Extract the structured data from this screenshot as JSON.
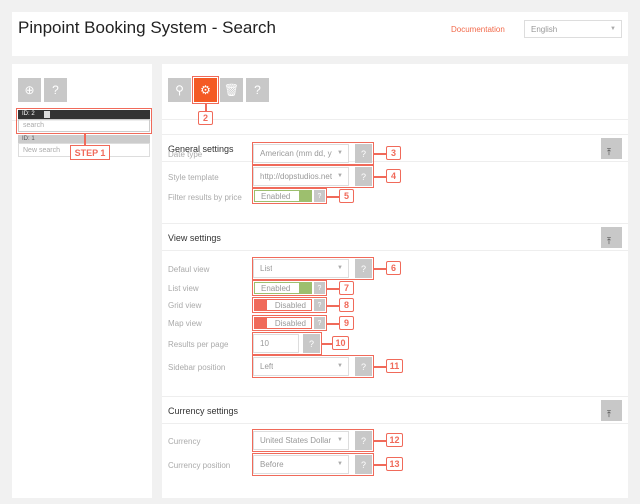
{
  "header": {
    "title": "Pinpoint Booking System - Search",
    "documentation": "Documentation",
    "language": "English"
  },
  "sidebar": {
    "items": [
      {
        "id": "ID: 2",
        "name": "search"
      },
      {
        "id": "ID: 1",
        "name": "New search"
      }
    ],
    "step_label": "STEP 1"
  },
  "toolbar": {
    "buttons": [
      "search-icon",
      "gear-icon",
      "trash-icon",
      "help-icon"
    ]
  },
  "sections": {
    "general": {
      "title": "General settings",
      "date_type_label": "Date type",
      "date_type": "American (mm dd, yyy",
      "style_label": "Style template",
      "style": "http://dopstudios.net/",
      "filter_label": "Filter results by price",
      "filter": "Enabled"
    },
    "view": {
      "title": "View settings",
      "default_label": "Defaul view",
      "default": "List",
      "list_label": "List view",
      "list": "Enabled",
      "grid_label": "Grid view",
      "grid": "Disabled",
      "map_label": "Map view",
      "map": "Disabled",
      "rpp_label": "Results per page",
      "rpp": "10",
      "sidebar_label": "Sidebar position",
      "sidebar": "Left"
    },
    "currency": {
      "title": "Currency settings",
      "currency_label": "Currency",
      "currency": "United States Dollar",
      "position_label": "Currency position",
      "position": "Before"
    }
  },
  "annotations": [
    "2",
    "3",
    "4",
    "5",
    "6",
    "7",
    "8",
    "9",
    "10",
    "11",
    "12",
    "13"
  ],
  "colors": {
    "accent": "#f45a24",
    "enabled": "#9dbf6e",
    "disabled": "#f06a5a",
    "annotation": "#f06a5a"
  }
}
